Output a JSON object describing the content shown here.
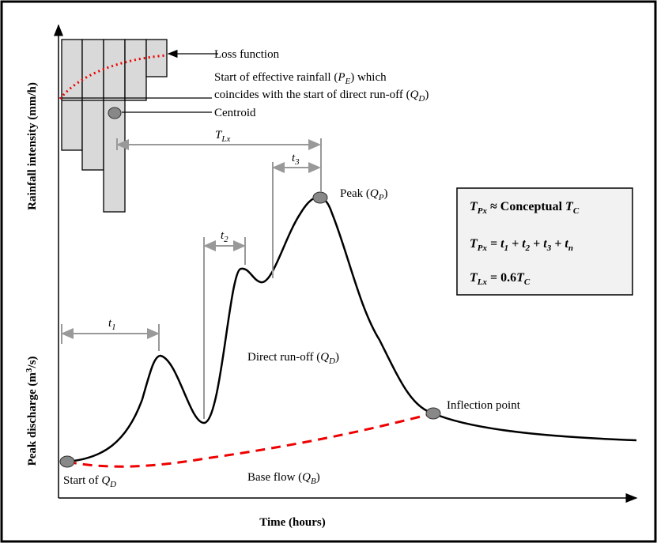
{
  "axes": {
    "y_top": "Rainfall intensity (mm/h)",
    "y_bottom": [
      "Peak discharge (m",
      "3",
      "/s)"
    ],
    "x": "Time (hours)"
  },
  "labels": {
    "loss_function": "Loss function",
    "effective_rainfall": [
      "Start of effective rainfall (",
      "P",
      "E",
      ") which"
    ],
    "coincides": [
      "coincides with the start of direct run-off (",
      "Q",
      "D",
      ")"
    ],
    "centroid": "Centroid",
    "lag": [
      "T",
      "Lx"
    ],
    "t1": [
      "t",
      "1"
    ],
    "t2": [
      "t",
      "2"
    ],
    "t3": [
      "t",
      "3"
    ],
    "peak": [
      "Peak (",
      "Q",
      "P",
      ")"
    ],
    "direct_runoff": [
      "Direct run-off (",
      "Q",
      "D",
      ")"
    ],
    "inflection": "Inflection point",
    "start": [
      "Start of ",
      "Q",
      "D"
    ],
    "base_flow": [
      "Base flow (",
      "Q",
      "B",
      ")"
    ]
  },
  "box": {
    "line1": [
      "T",
      "Px",
      " ≈ Conceptual ",
      "T",
      "C"
    ],
    "line2": [
      "T",
      "Px",
      " = ",
      "t",
      "1",
      " + ",
      "t",
      "2",
      " + ",
      "t",
      "3",
      " + ",
      "t",
      "n"
    ],
    "line3": [
      "T",
      "Lx",
      " = 0.6",
      "T",
      "C"
    ]
  }
}
